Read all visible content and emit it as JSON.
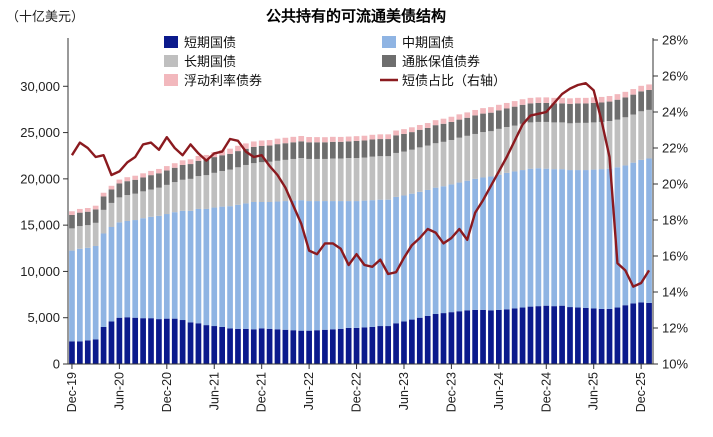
{
  "chart_data": {
    "type": "bar",
    "title": "公共持有的可流通美债结构",
    "ylabel_left": "（十亿美元）",
    "ylabel_right": "",
    "left_axis": {
      "min": 0,
      "max": 35000,
      "ticks": [
        0,
        5000,
        10000,
        15000,
        20000,
        25000,
        30000
      ],
      "tick_labels": [
        "0",
        "5,000",
        "10,000",
        "15,000",
        "20,000",
        "25,000",
        "30,000"
      ]
    },
    "right_axis": {
      "min": 10,
      "max": 28,
      "ticks": [
        10,
        12,
        14,
        16,
        18,
        20,
        22,
        24,
        26,
        28
      ],
      "tick_labels": [
        "10%",
        "12%",
        "14%",
        "16%",
        "18%",
        "20%",
        "22%",
        "24%",
        "26%",
        "28%"
      ]
    },
    "x_tick_labels": [
      "Dec-19",
      "Jun-20",
      "Dec-20",
      "Jun-21",
      "Dec-21",
      "Jun-22",
      "Dec-22",
      "Jun-23",
      "Dec-23",
      "Jun-24",
      "Dec-24",
      "Jun-25",
      "Dec-25"
    ],
    "x_tick_index": [
      0,
      6,
      12,
      18,
      24,
      30,
      36,
      42,
      48,
      54,
      60,
      66,
      72
    ],
    "series": [
      {
        "name": "短期国债",
        "color": "#0b1a8c",
        "values": [
          2450,
          2450,
          2550,
          2650,
          4000,
          4600,
          5000,
          5050,
          5000,
          4950,
          4950,
          4850,
          4900,
          4900,
          4750,
          4500,
          4400,
          4200,
          4100,
          4000,
          3850,
          3800,
          3800,
          3750,
          3850,
          3800,
          3750,
          3700,
          3650,
          3600,
          3600,
          3650,
          3700,
          3750,
          3800,
          3900,
          3900,
          3950,
          4000,
          4100,
          4100,
          4400,
          4600,
          4800,
          5000,
          5200,
          5400,
          5500,
          5600,
          5700,
          5800,
          5850,
          5850,
          5800,
          5850,
          5900,
          6000,
          6100,
          6200,
          6250,
          6300,
          6250,
          6300,
          6150,
          6100,
          6050,
          6000,
          5950,
          5950,
          6100,
          6350,
          6550,
          6650,
          6600
        ]
      },
      {
        "name": "中期国债",
        "color": "#8fb4e3",
        "values": [
          9800,
          10000,
          10000,
          10100,
          10100,
          10200,
          10300,
          10400,
          10550,
          10800,
          10950,
          11150,
          11300,
          11500,
          11800,
          12050,
          12350,
          12550,
          12800,
          13000,
          13200,
          13400,
          13550,
          13750,
          13650,
          13700,
          13800,
          13900,
          14000,
          14100,
          14000,
          13950,
          13900,
          13850,
          13800,
          13700,
          13700,
          13700,
          13700,
          13650,
          13650,
          13650,
          13600,
          13600,
          13600,
          13600,
          13650,
          13700,
          13800,
          13900,
          14000,
          14150,
          14300,
          14450,
          14600,
          14750,
          14800,
          14850,
          14900,
          14900,
          14800,
          14800,
          14750,
          14800,
          14850,
          14900,
          15000,
          15100,
          15150,
          15150,
          15100,
          15200,
          15400,
          15600
        ]
      },
      {
        "name": "长期国债",
        "color": "#bfbfbf",
        "values": [
          2400,
          2450,
          2450,
          2500,
          2550,
          2600,
          2700,
          2800,
          2850,
          2900,
          2950,
          3050,
          3150,
          3250,
          3350,
          3450,
          3550,
          3650,
          3750,
          3850,
          3950,
          4050,
          4150,
          4200,
          4300,
          4350,
          4400,
          4450,
          4500,
          4550,
          4550,
          4550,
          4550,
          4600,
          4600,
          4650,
          4650,
          4650,
          4700,
          4700,
          4700,
          4750,
          4750,
          4750,
          4800,
          4800,
          4800,
          4800,
          4800,
          4850,
          4850,
          4850,
          4900,
          4900,
          4950,
          4950,
          4950,
          5000,
          5000,
          5000,
          5050,
          5050,
          5050,
          5050,
          5100,
          5100,
          5100,
          5100,
          5150,
          5150,
          5200,
          5200,
          5250,
          5250
        ]
      },
      {
        "name": "通胀保值债券",
        "color": "#6e6e6e",
        "values": [
          1450,
          1450,
          1450,
          1450,
          1450,
          1450,
          1500,
          1500,
          1500,
          1500,
          1550,
          1550,
          1550,
          1550,
          1600,
          1600,
          1650,
          1650,
          1700,
          1700,
          1700,
          1750,
          1750,
          1750,
          1750,
          1750,
          1800,
          1800,
          1800,
          1800,
          1800,
          1800,
          1800,
          1800,
          1800,
          1800,
          1850,
          1850,
          1850,
          1850,
          1850,
          1900,
          1900,
          1900,
          1900,
          1900,
          1950,
          1950,
          1950,
          1950,
          1950,
          2000,
          2000,
          2000,
          2000,
          2000,
          2050,
          2050,
          2050,
          2050,
          2050,
          2050,
          2050,
          2100,
          2100,
          2100,
          2100,
          2100,
          2100,
          2150,
          2150,
          2150,
          2150,
          2150
        ]
      },
      {
        "name": "浮动利率债券",
        "color": "#f2b8bd",
        "values": [
          400,
          400,
          400,
          400,
          400,
          400,
          420,
          430,
          440,
          450,
          460,
          470,
          480,
          490,
          500,
          510,
          520,
          530,
          540,
          550,
          560,
          570,
          580,
          590,
          590,
          590,
          590,
          590,
          590,
          580,
          570,
          560,
          550,
          540,
          530,
          520,
          510,
          510,
          510,
          510,
          510,
          520,
          520,
          520,
          520,
          530,
          540,
          550,
          560,
          570,
          580,
          590,
          590,
          600,
          600,
          600,
          600,
          600,
          600,
          600,
          600,
          600,
          600,
          600,
          600,
          600,
          600,
          600,
          600,
          600,
          600,
          600,
          600,
          600
        ]
      }
    ],
    "line": {
      "name": "短债占比（右轴）",
      "color": "#8b1a1f",
      "axis": "right",
      "values": [
        21.6,
        22.3,
        22.0,
        21.5,
        21.6,
        20.5,
        20.7,
        21.2,
        21.5,
        22.2,
        22.3,
        21.9,
        22.6,
        22.0,
        21.6,
        22.2,
        21.7,
        21.3,
        21.7,
        21.8,
        22.5,
        22.4,
        21.8,
        21.5,
        21.6,
        21.0,
        20.5,
        19.8,
        18.8,
        17.8,
        16.3,
        16.1,
        16.7,
        16.7,
        16.4,
        15.5,
        16.1,
        15.5,
        15.4,
        15.8,
        15.0,
        15.1,
        15.9,
        16.6,
        17.0,
        17.5,
        17.3,
        16.7,
        17.0,
        17.5,
        16.9,
        18.4,
        19.1,
        19.9,
        20.7,
        21.5,
        22.4,
        23.3,
        23.8,
        23.9,
        24.0,
        24.5,
        25.0,
        25.3,
        25.5,
        25.6,
        25.2,
        23.5,
        21.5,
        15.6,
        15.2,
        14.3,
        14.5,
        15.2
      ]
    }
  },
  "legend": {
    "items": [
      {
        "label": "短期国债",
        "color": "#0b1a8c",
        "kind": "box"
      },
      {
        "label": "中期国债",
        "color": "#8fb4e3",
        "kind": "box"
      },
      {
        "label": "长期国债",
        "color": "#bfbfbf",
        "kind": "box"
      },
      {
        "label": "通胀保值债券",
        "color": "#6e6e6e",
        "kind": "box"
      },
      {
        "label": "浮动利率债券",
        "color": "#f2b8bd",
        "kind": "box"
      },
      {
        "label": "短债占比（右轴）",
        "color": "#8b1a1f",
        "kind": "line"
      }
    ]
  }
}
